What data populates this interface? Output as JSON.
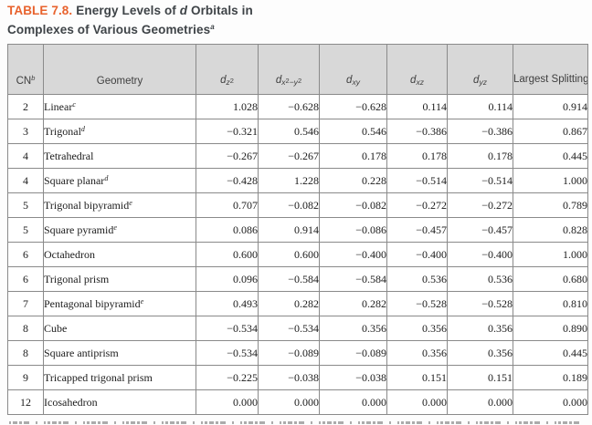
{
  "colors": {
    "accent_orange": "#E8622D",
    "title_text": "#3E4347",
    "header_bg": "#D8D8D8",
    "header_text": "#3F3F3F",
    "cell_border": "#8A8A8A",
    "body_text": "#1B1B1B"
  },
  "title": {
    "label": "TABLE 7.8.",
    "line1_html": "Energy Levels of <i>d</i> Orbitals in",
    "line2_html": "Complexes of Various Geometries<sup>a</sup>"
  },
  "table": {
    "headers": [
      {
        "key": "cn",
        "html": "CN<sup class=\"fn\">b</sup>"
      },
      {
        "key": "geometry",
        "html": "Geometry"
      },
      {
        "key": "dz2",
        "html": "<span class=\"dh\">d</span><sub>z<sup>2</sup></sub>"
      },
      {
        "key": "dx2y2",
        "html": "<span class=\"dh\">d</span><sub>x<sup>2</sup>−y<sup>2</sup></sub>"
      },
      {
        "key": "dxy",
        "html": "<span class=\"dh\">d</span><sub>xy</sub>"
      },
      {
        "key": "dxz",
        "html": "<span class=\"dh\">d</span><sub>xz</sub>"
      },
      {
        "key": "dyz",
        "html": "<span class=\"dh\">d</span><sub>yz</sub>"
      },
      {
        "key": "split",
        "html": "Largest Splitting"
      }
    ],
    "rows": [
      {
        "cn": "2",
        "geometry_html": "Linear<sup>c</sup>",
        "values": [
          "1.028",
          "−0.628",
          "−0.628",
          "0.114",
          "0.114",
          "0.914"
        ]
      },
      {
        "cn": "3",
        "geometry_html": "Trigonal<sup>d</sup>",
        "values": [
          "−0.321",
          "0.546",
          "0.546",
          "−0.386",
          "−0.386",
          "0.867"
        ]
      },
      {
        "cn": "4",
        "geometry_html": "Tetrahedral",
        "values": [
          "−0.267",
          "−0.267",
          "0.178",
          "0.178",
          "0.178",
          "0.445"
        ]
      },
      {
        "cn": "4",
        "geometry_html": "Square planar<sup>d</sup>",
        "values": [
          "−0.428",
          "1.228",
          "0.228",
          "−0.514",
          "−0.514",
          "1.000"
        ]
      },
      {
        "cn": "5",
        "geometry_html": "Trigonal bipyramid<sup>e</sup>",
        "values": [
          "0.707",
          "−0.082",
          "−0.082",
          "−0.272",
          "−0.272",
          "0.789"
        ]
      },
      {
        "cn": "5",
        "geometry_html": "Square pyramid<sup>e</sup>",
        "values": [
          "0.086",
          "0.914",
          "−0.086",
          "−0.457",
          "−0.457",
          "0.828"
        ]
      },
      {
        "cn": "6",
        "geometry_html": "Octahedron",
        "values": [
          "0.600",
          "0.600",
          "−0.400",
          "−0.400",
          "−0.400",
          "1.000"
        ]
      },
      {
        "cn": "6",
        "geometry_html": "Trigonal prism",
        "values": [
          "0.096",
          "−0.584",
          "−0.584",
          "0.536",
          "0.536",
          "0.680"
        ]
      },
      {
        "cn": "7",
        "geometry_html": "Pentagonal bipyramid<sup>e</sup>",
        "values": [
          "0.493",
          "0.282",
          "0.282",
          "−0.528",
          "−0.528",
          "0.810"
        ]
      },
      {
        "cn": "8",
        "geometry_html": "Cube",
        "values": [
          "−0.534",
          "−0.534",
          "0.356",
          "0.356",
          "0.356",
          "0.890"
        ]
      },
      {
        "cn": "8",
        "geometry_html": "Square antiprism",
        "values": [
          "−0.534",
          "−0.089",
          "−0.089",
          "0.356",
          "0.356",
          "0.445"
        ]
      },
      {
        "cn": "9",
        "geometry_html": "Tricapped trigonal prism",
        "values": [
          "−0.225",
          "−0.038",
          "−0.038",
          "0.151",
          "0.151",
          "0.189"
        ]
      },
      {
        "cn": "12",
        "geometry_html": "Icosahedron",
        "values": [
          "0.000",
          "0.000",
          "0.000",
          "0.000",
          "0.000",
          "0.000"
        ]
      }
    ]
  }
}
